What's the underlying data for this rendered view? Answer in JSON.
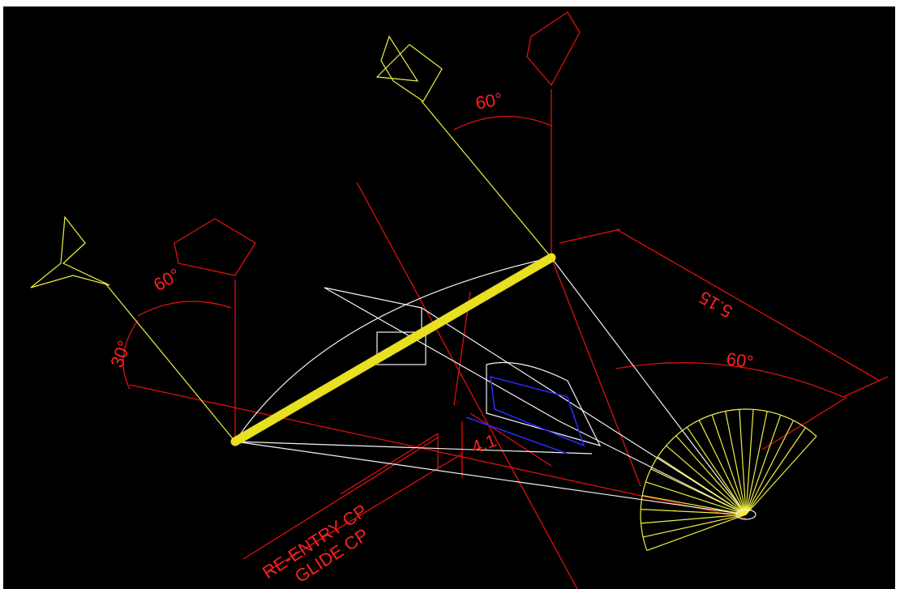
{
  "labels": {
    "angle_top": "60°",
    "angle_left": "60°",
    "angle_left_low": "30°",
    "dimension": "5.15",
    "angle_right": "60°",
    "dimension_small": "4.1",
    "reentry": "RE-ENTRY CP",
    "glide": "GLIDE CP"
  }
}
